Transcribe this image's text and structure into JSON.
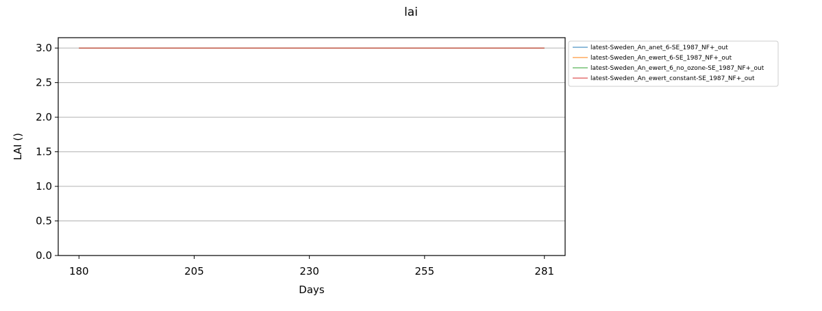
{
  "chart_data": {
    "type": "line",
    "title": "lai",
    "xlabel": "Days",
    "ylabel": "LAI ()",
    "xlim": [
      175.5,
      285.5
    ],
    "ylim": [
      0,
      3.15
    ],
    "x_ticks": [
      180,
      205,
      230,
      255,
      281
    ],
    "y_ticks": [
      "0.0",
      "0.5",
      "1.0",
      "1.5",
      "2.0",
      "2.5",
      "3.0"
    ],
    "grid": "horizontal",
    "legend_position": "outside-right-top",
    "x": [
      180,
      281
    ],
    "series": [
      {
        "name": "latest-Sweden_An_anet_6-SE_1987_NF+_out",
        "color": "#1f77b4",
        "values": [
          3.0,
          3.0
        ]
      },
      {
        "name": "latest-Sweden_An_ewert_6-SE_1987_NF+_out",
        "color": "#ff7f0e",
        "values": [
          3.0,
          3.0
        ]
      },
      {
        "name": "latest-Sweden_An_ewert_6_no_ozone-SE_1987_NF+_out",
        "color": "#2ca02c",
        "values": [
          3.0,
          3.0
        ]
      },
      {
        "name": "latest-Sweden_An_ewert_constant-SE_1987_NF+_out",
        "color": "#d62728",
        "values": [
          3.0,
          3.0
        ]
      }
    ]
  }
}
